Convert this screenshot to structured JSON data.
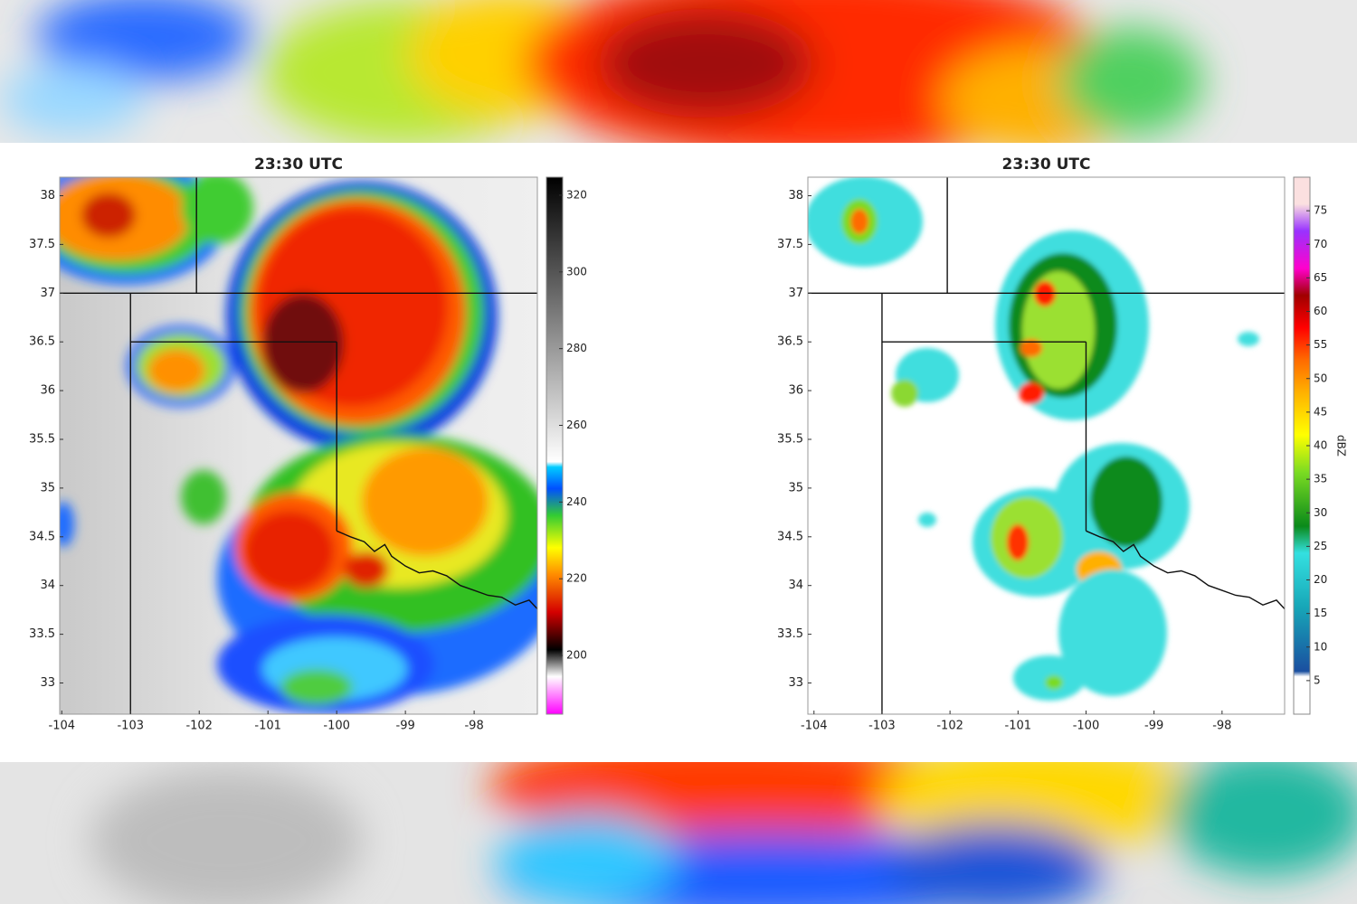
{
  "panels": [
    {
      "title": "23:30 UTC",
      "xticks": [
        -104,
        -103,
        -102,
        -101,
        -100,
        -99,
        -98
      ],
      "xlim": [
        -104.03,
        -97.08
      ],
      "yticks": [
        38,
        37.5,
        37,
        36.5,
        36,
        35.5,
        35,
        34.5,
        34,
        33.5,
        33
      ],
      "ylim": [
        32.68,
        38.19
      ],
      "colorbar": {
        "ticks": [
          200,
          220,
          240,
          260,
          280,
          300,
          320
        ],
        "lim": [
          184.7,
          324.7
        ]
      }
    },
    {
      "title": "23:30 UTC",
      "xticks": [
        -104,
        -103,
        -102,
        -101,
        -100,
        -99,
        -98
      ],
      "xlim": [
        -104.09,
        -97.08
      ],
      "yticks": [
        38,
        37.5,
        37,
        36.5,
        36,
        35.5,
        35,
        34.5,
        34,
        33.5,
        33
      ],
      "ylim": [
        32.68,
        38.19
      ],
      "colorbar": {
        "ticks": [
          5,
          10,
          15,
          20,
          25,
          30,
          35,
          40,
          45,
          50,
          55,
          60,
          65,
          70,
          75
        ],
        "lim": [
          0,
          80
        ],
        "label": "dBZ"
      }
    }
  ]
}
